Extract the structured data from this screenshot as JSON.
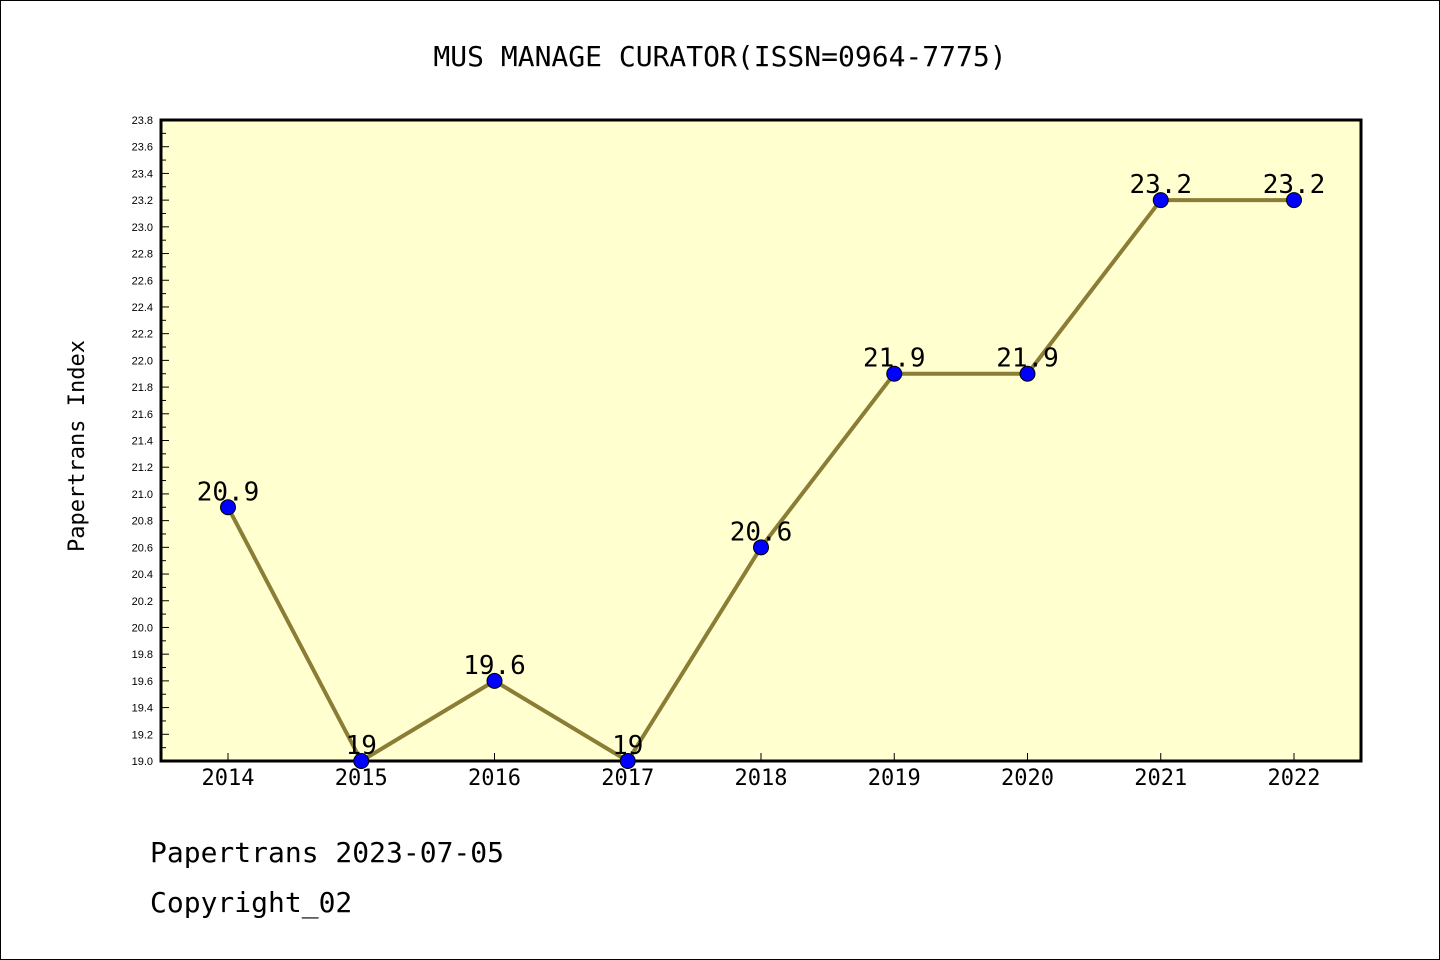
{
  "chart_data": {
    "type": "line",
    "title": "MUS MANAGE CURATOR(ISSN=0964-7775)",
    "ylabel": "Papertrans Index",
    "xlabel": "",
    "categories": [
      "2014",
      "2015",
      "2016",
      "2017",
      "2018",
      "2019",
      "2020",
      "2021",
      "2022"
    ],
    "series": [
      {
        "values": [
          20.9,
          19,
          19.6,
          19,
          20.6,
          21.9,
          21.9,
          23.2,
          23.2
        ],
        "labels": [
          "20.9",
          "19",
          "19.6",
          "19",
          "20.6",
          "21.9",
          "21.9",
          "23.2",
          "23.2"
        ]
      }
    ],
    "ylim": [
      19.0,
      23.8
    ],
    "yticks": [
      "19.0",
      "19.2",
      "19.4",
      "19.6",
      "19.8",
      "20.0",
      "20.2",
      "20.4",
      "20.6",
      "20.8",
      "21.0",
      "21.2",
      "21.4",
      "21.6",
      "21.8",
      "22.0",
      "22.2",
      "22.4",
      "22.6",
      "22.8",
      "23.0",
      "23.2",
      "23.4",
      "23.6",
      "23.8"
    ],
    "grid": false,
    "colors": {
      "plot_bg": "#FFFFD0",
      "line": "#8B7D35",
      "marker": "#0000FF"
    }
  },
  "footer": {
    "line1": "Papertrans 2023-07-05",
    "line2": "Copyright_02"
  }
}
